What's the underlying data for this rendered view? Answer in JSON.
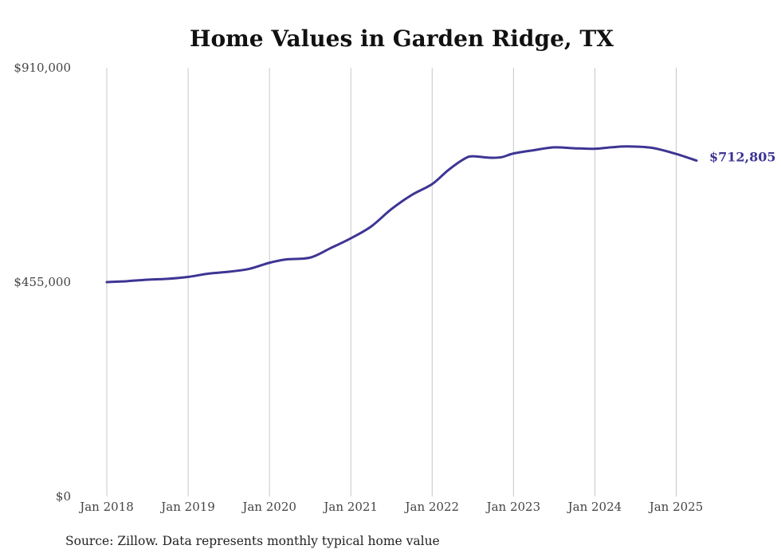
{
  "chart_data": {
    "type": "line",
    "title": "Home Values in Garden Ridge, TX",
    "source": "Source: Zillow. Data represents monthly typical home value",
    "line_color": "#3d3594",
    "grid": "vertical",
    "y_ticks": [
      {
        "value": 0,
        "label": "$0"
      },
      {
        "value": 455000,
        "label": "$455,000"
      },
      {
        "value": 910000,
        "label": "$910,000"
      }
    ],
    "x_ticks": [
      {
        "value": 2018.0,
        "label": "Jan 2018"
      },
      {
        "value": 2019.0,
        "label": "Jan 2019"
      },
      {
        "value": 2020.0,
        "label": "Jan 2020"
      },
      {
        "value": 2021.0,
        "label": "Jan 2021"
      },
      {
        "value": 2022.0,
        "label": "Jan 2022"
      },
      {
        "value": 2023.0,
        "label": "Jan 2023"
      },
      {
        "value": 2024.0,
        "label": "Jan 2024"
      },
      {
        "value": 2025.0,
        "label": "Jan 2025"
      }
    ],
    "xlim": [
      2018.0,
      2025.25
    ],
    "ylim": [
      0,
      910000
    ],
    "end_label": "$712,805",
    "series": [
      {
        "x": [
          2018.0,
          2018.25,
          2018.5,
          2018.75,
          2019.0,
          2019.25,
          2019.5,
          2019.75,
          2020.0,
          2020.2,
          2020.5,
          2020.75,
          2021.0,
          2021.25,
          2021.5,
          2021.75,
          2022.0,
          2022.2,
          2022.4,
          2022.5,
          2022.7,
          2022.85,
          2023.0,
          2023.25,
          2023.5,
          2023.75,
          2024.0,
          2024.2,
          2024.4,
          2024.7,
          2025.0,
          2025.25
        ],
        "y": [
          455000,
          457000,
          460000,
          462000,
          466000,
          473000,
          477000,
          483000,
          496000,
          503000,
          507000,
          527000,
          548000,
          573000,
          610000,
          640000,
          663000,
          693000,
          717000,
          722000,
          719000,
          720000,
          728000,
          735000,
          741000,
          739000,
          738000,
          741000,
          743000,
          740000,
          727000,
          712805
        ]
      }
    ]
  }
}
